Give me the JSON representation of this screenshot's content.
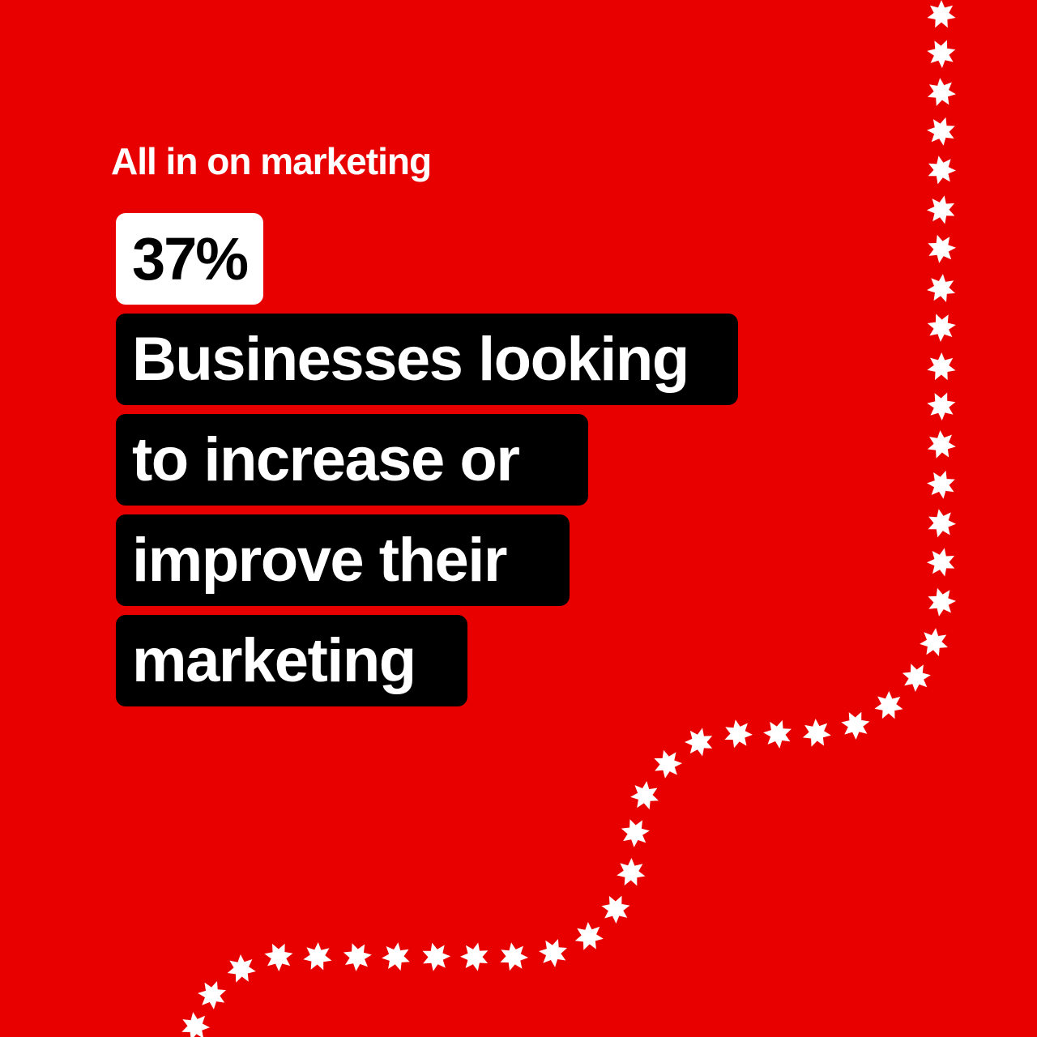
{
  "kicker": "All in on marketing",
  "stat": "37%",
  "description_lines": [
    "Businesses looking",
    "to increase or",
    "improve their",
    "marketing"
  ],
  "colors": {
    "background": "#e80000",
    "text_box": "#000000",
    "stat_box": "#ffffff",
    "stars": "#ffffff"
  },
  "decoration": "star-trail-icon"
}
